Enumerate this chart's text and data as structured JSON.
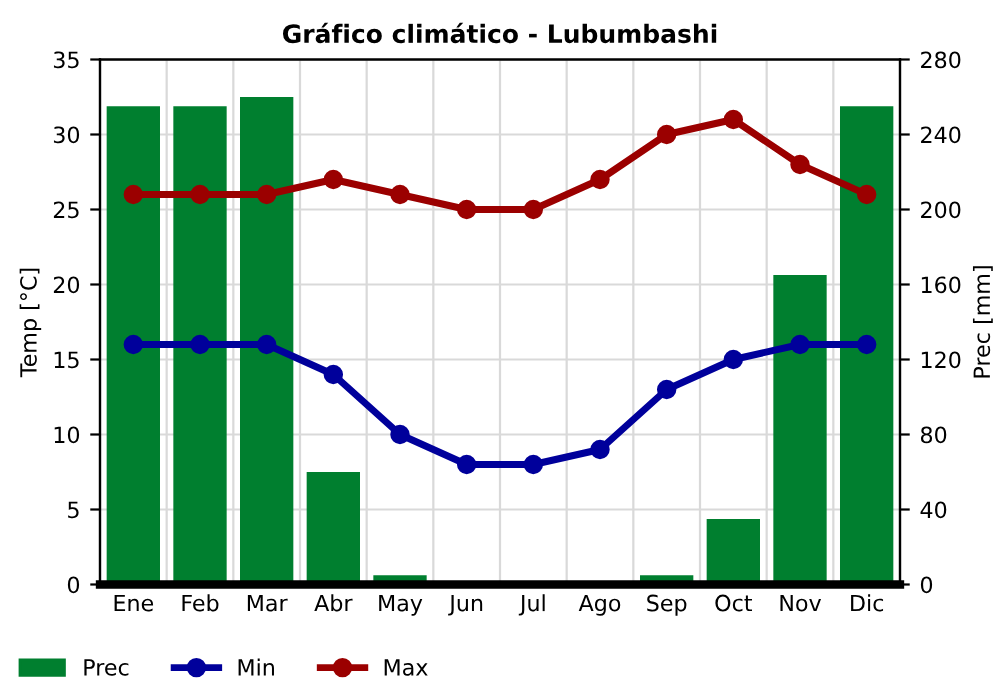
{
  "chart_data": {
    "type": "bar",
    "title": "Gráfico climático - Lubumbashi",
    "ylabel": "Temp [°C]",
    "y2label": "Prec [mm]",
    "categories": [
      "Ene",
      "Feb",
      "Mar",
      "Abr",
      "May",
      "Jun",
      "Jul",
      "Ago",
      "Sep",
      "Oct",
      "Nov",
      "Dic"
    ],
    "series": [
      {
        "name": "Prec",
        "axis": "y2",
        "color": "#007f2f",
        "values": [
          255,
          255,
          260,
          60,
          5,
          1,
          1,
          1,
          5,
          35,
          165,
          255
        ]
      },
      {
        "name": "Min",
        "type": "line",
        "axis": "y",
        "color": "#00009b",
        "values": [
          16,
          16,
          16,
          14,
          10,
          8,
          8,
          9,
          13,
          15,
          16,
          16
        ]
      },
      {
        "name": "Max",
        "type": "line",
        "axis": "y",
        "color": "#9b0000",
        "values": [
          26,
          26,
          26,
          27,
          26,
          25,
          25,
          27,
          30,
          31,
          28,
          26
        ]
      }
    ],
    "ylim": [
      0,
      35
    ],
    "yticks": [
      0,
      5,
      10,
      15,
      20,
      25,
      30,
      35
    ],
    "y2lim": [
      0,
      280
    ],
    "y2ticks": [
      0,
      40,
      80,
      120,
      160,
      200,
      240,
      280
    ],
    "grid": true,
    "legend": "bottom left",
    "marker": "circle",
    "line_style": "solid"
  }
}
